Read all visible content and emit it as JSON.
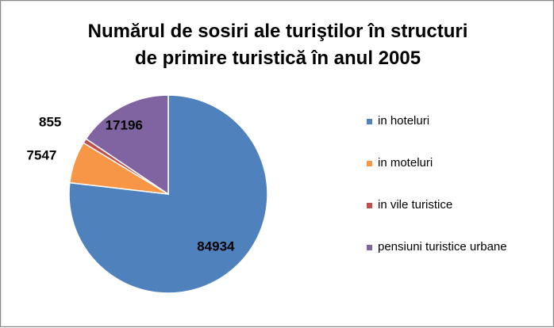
{
  "chart_data": {
    "type": "pie",
    "title_lines": [
      "Numărul de sosiri ale turiştilor în structuri",
      "de primire turistică în anul 2005"
    ],
    "slices": [
      {
        "name": "in hoteluri",
        "value": 84934,
        "label": "84934",
        "color": "#4f81bd"
      },
      {
        "name": "in moteluri",
        "value": 7547,
        "label": "7547",
        "color": "#f79646"
      },
      {
        "name": "in vile turistice",
        "value": 855,
        "label": "855",
        "color": "#c0504d"
      },
      {
        "name": "pensiuni turistice urbane",
        "value": 17196,
        "label": "17196",
        "color": "#8064a2"
      }
    ],
    "legend_position": "right"
  }
}
